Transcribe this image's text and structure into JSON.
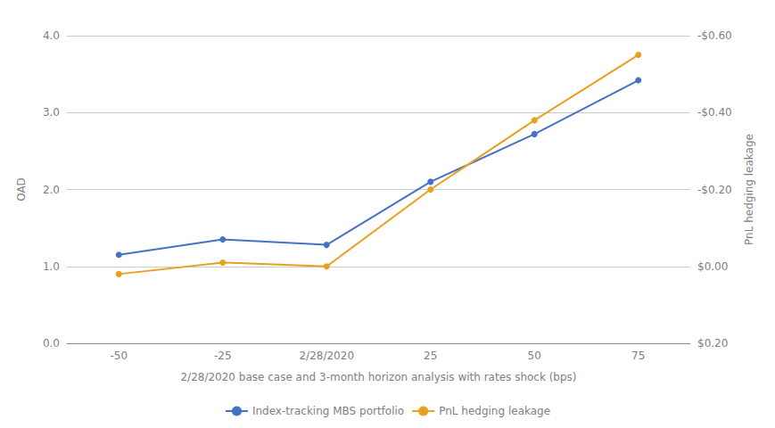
{
  "chart_data": {
    "type": "line",
    "xlabel": "2/28/2020 base case and 3-month horizon analysis with rates shock (bps)",
    "ylabel": "OAD",
    "y2label": "PnL hedging leakage",
    "categories": [
      "-50",
      "-25",
      "2/28/2020",
      "25",
      "50",
      "75"
    ],
    "series": [
      {
        "name": "Index-tracking MBS portfolio",
        "color": "#4472c4",
        "marker": "circle",
        "values": [
          1.15,
          1.35,
          1.28,
          2.1,
          2.72,
          3.42
        ]
      },
      {
        "name": "PnL hedging leakage",
        "color": "#e8a020",
        "marker": "circle",
        "axis": "y2",
        "values": [
          0.02,
          -0.01,
          0.0,
          -0.2,
          -0.38,
          -0.55
        ]
      }
    ],
    "ylim": [
      0.0,
      4.0
    ],
    "yticks": [
      {
        "value": 0.0,
        "label": "0.0"
      },
      {
        "value": 1.0,
        "label": "1.0"
      },
      {
        "value": 2.0,
        "label": "2.0"
      },
      {
        "value": 3.0,
        "label": "3.0"
      },
      {
        "value": 4.0,
        "label": "4.0"
      }
    ],
    "y2lim": [
      0.2,
      -0.6
    ],
    "y2ticks": [
      {
        "value": 0.2,
        "label": "$0.20"
      },
      {
        "value": 0.0,
        "label": "$0.00"
      },
      {
        "value": -0.2,
        "label": "-$0.20"
      },
      {
        "value": -0.4,
        "label": "-$0.40"
      },
      {
        "value": -0.6,
        "label": "-$0.60"
      }
    ],
    "grid": true,
    "legend": "bottom"
  }
}
